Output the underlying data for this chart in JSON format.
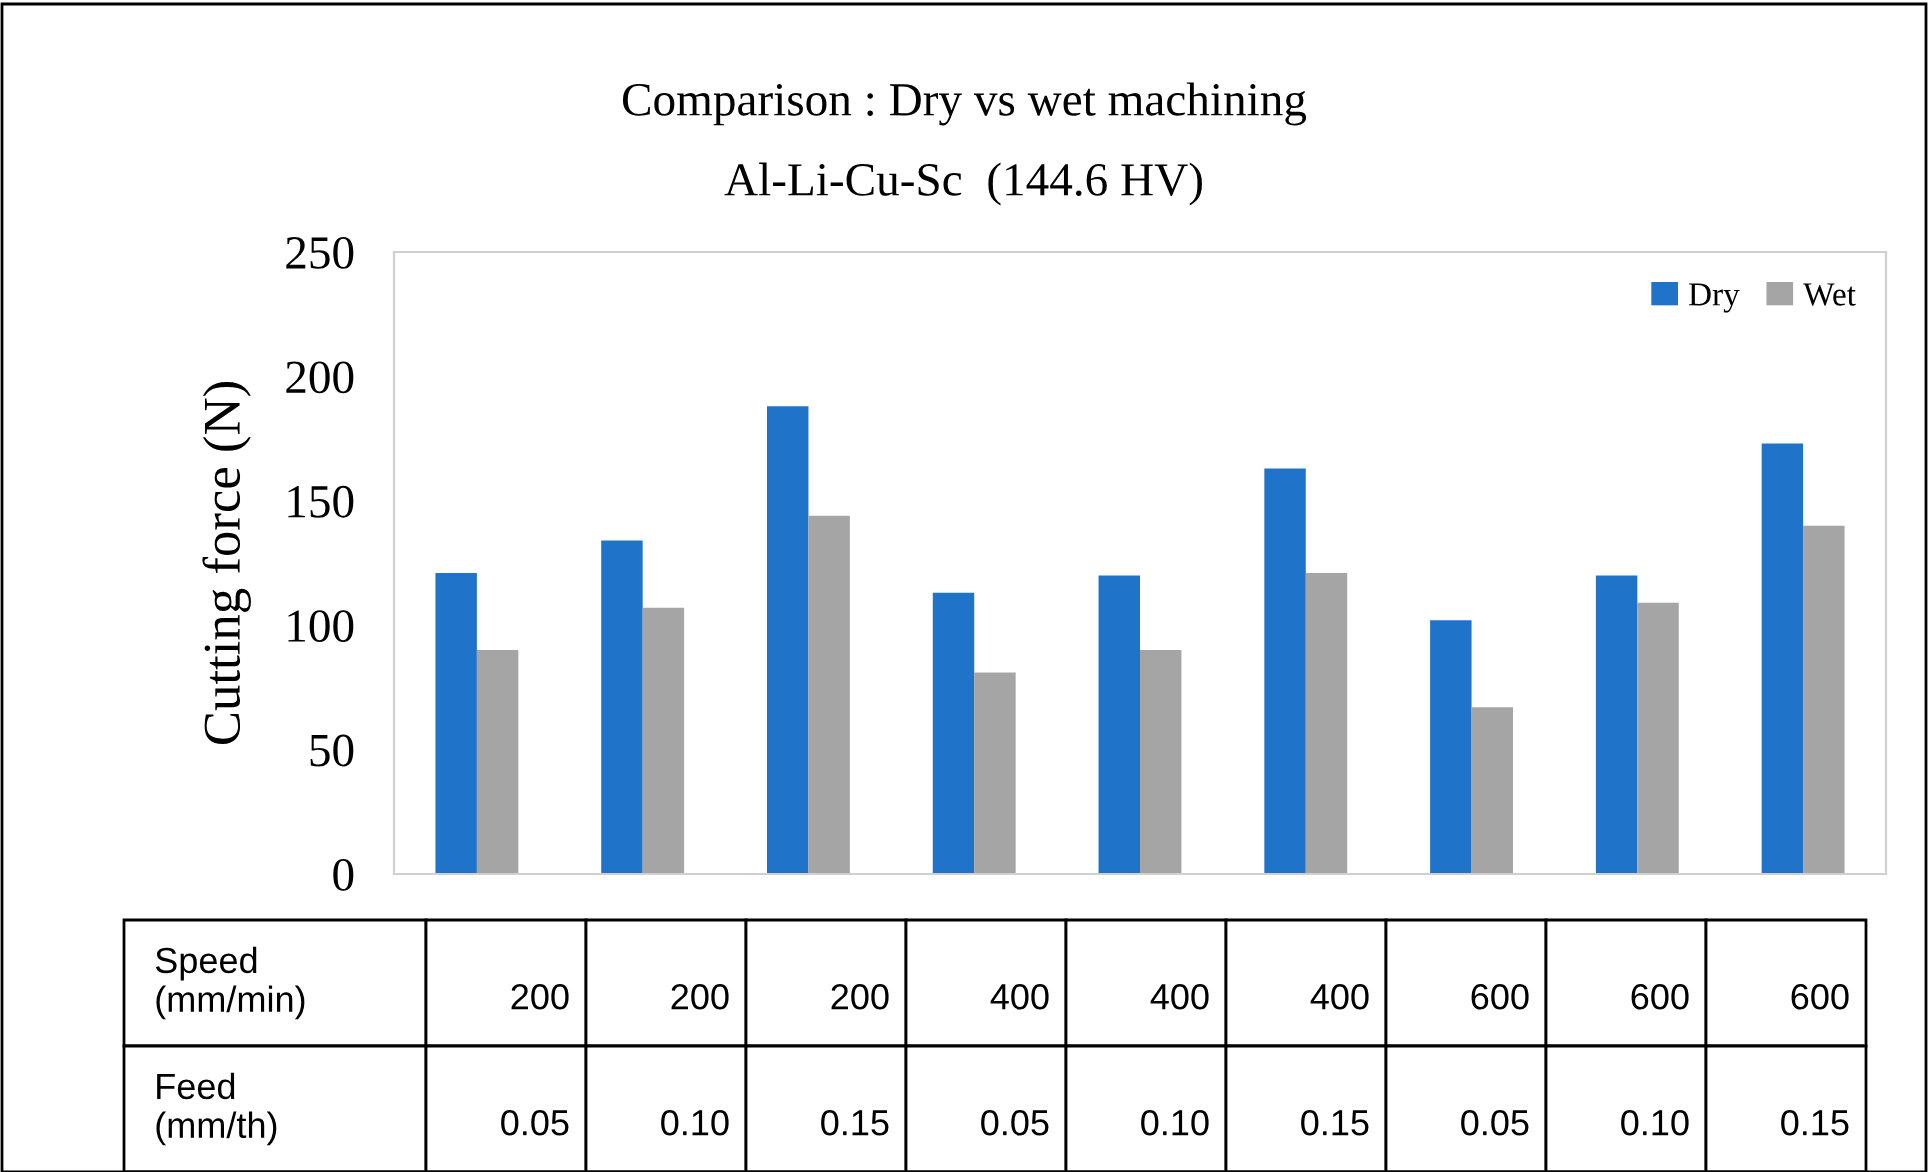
{
  "chart_data": {
    "type": "bar",
    "title": "Comparison : Dry vs wet machining",
    "subtitle": "Al-Li-Cu-Sc  (144.6 HV)",
    "ylabel": "Cutting force (N)",
    "categories": [
      "200\n0.05",
      "200\n0.10",
      "200\n0.15",
      "400\n0.05",
      "400\n0.10",
      "400\n0.15",
      "600\n0.05",
      "600\n0.10",
      "600\n0.15"
    ],
    "annotations": [
      "Speed\n(mm/min)",
      "Feed\n(mm/th)"
    ],
    "series": [
      {
        "name": "Dry",
        "color": "#1f74c9",
        "values": [
          121,
          134,
          188,
          113,
          120,
          163,
          102,
          120,
          173
        ]
      },
      {
        "name": "Wet",
        "color": "#a5a5a5",
        "values": [
          90,
          107,
          144,
          81,
          90,
          121,
          67,
          109,
          140
        ]
      }
    ],
    "ylim": [
      0,
      250
    ],
    "yticks": [
      0,
      50,
      100,
      150,
      200,
      250
    ],
    "grid": false,
    "legend": "top right"
  }
}
